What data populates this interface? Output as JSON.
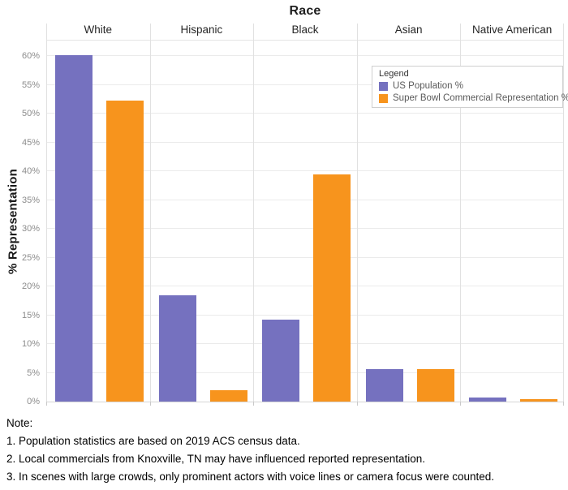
{
  "chart_data": {
    "type": "bar",
    "title": "Race",
    "ylabel": "% Representation",
    "categories": [
      "White",
      "Hispanic",
      "Black",
      "Asian",
      "Native American"
    ],
    "series": [
      {
        "name": "US Population %",
        "color": "#7571BF",
        "values": [
          60.1,
          18.5,
          14.2,
          5.7,
          0.7
        ]
      },
      {
        "name": "Super Bowl Commercial Representation %",
        "color": "#F7941D",
        "values": [
          52.3,
          2.0,
          39.4,
          5.7,
          0.4
        ]
      }
    ],
    "y_axis": {
      "min": 0,
      "max": 60,
      "step": 5,
      "tick_suffix": "%",
      "ticks": [
        "0%",
        "5%",
        "10%",
        "15%",
        "20%",
        "25%",
        "30%",
        "35%",
        "40%",
        "45%",
        "50%",
        "55%",
        "60%"
      ]
    },
    "grid": true,
    "legend_position": "top-right"
  },
  "legend": {
    "title": "Legend"
  },
  "notes": {
    "heading": "Note:",
    "lines": [
      "1. Population statistics are based on 2019 ACS census data.",
      "2. Local commercials from Knoxville, TN may have influenced reported representation.",
      "3. In scenes with large crowds, only prominent actors with voice lines or camera focus were counted."
    ]
  },
  "colors": {
    "us_population": "#7571BF",
    "super_bowl": "#F7941D",
    "gridline": "#ebebeb",
    "axis_text": "#8c8c8c"
  }
}
